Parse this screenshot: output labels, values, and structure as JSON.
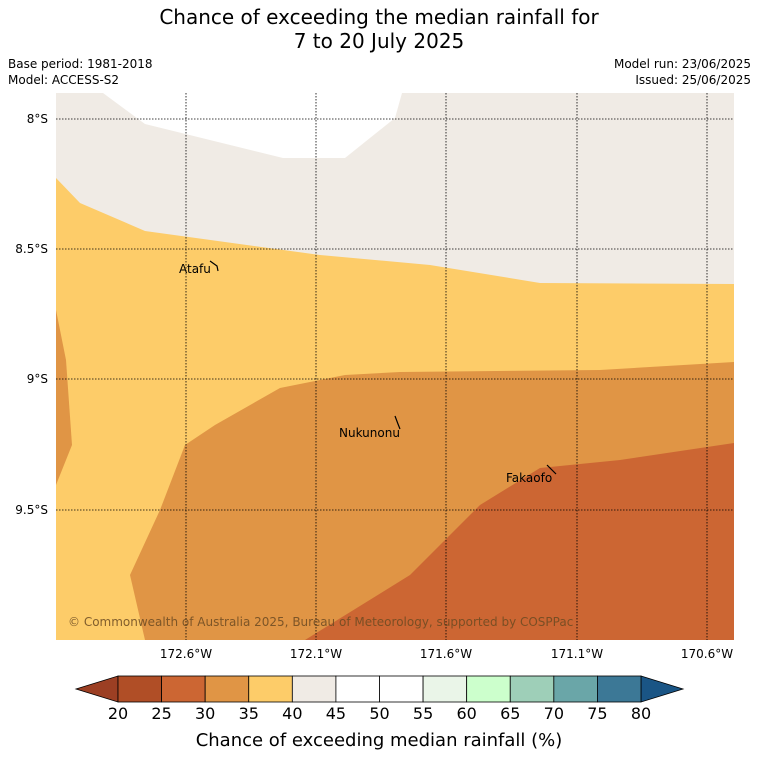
{
  "title": {
    "line1": "Chance of exceeding the median rainfall for",
    "line2": "7 to 20 July 2025"
  },
  "meta": {
    "base_period": "Base period: 1981-2018",
    "model": "Model: ACCESS-S2",
    "model_run": "Model run: 23/06/2025",
    "issued": "Issued: 25/06/2025"
  },
  "axes": {
    "lat_labels": [
      "8°S",
      "8.5°S",
      "9°S",
      "9.5°S"
    ],
    "lon_labels": [
      "172.6°W",
      "172.1°W",
      "171.6°W",
      "171.1°W",
      "170.6°W"
    ]
  },
  "places": [
    {
      "name": "Atafu"
    },
    {
      "name": "Nukunonu"
    },
    {
      "name": "Fakaofo"
    }
  ],
  "copyright": "© Commonwealth of Australia 2025, Bureau of Meteorology, supported by COSPPac",
  "colorbar": {
    "labels": [
      "20",
      "25",
      "30",
      "35",
      "40",
      "45",
      "50",
      "55",
      "60",
      "65",
      "70",
      "75",
      "80"
    ],
    "colors": [
      "#b04e26",
      "#cc6633",
      "#e09545",
      "#fdcc69",
      "#f0ebe5",
      "#ffffff",
      "#ffffff",
      "#eaf5e8",
      "#ccffcc",
      "#9ecfb8",
      "#6aa6a8",
      "#3c7896"
    ],
    "under_color": "#9c3f23",
    "over_color": "#1a5585",
    "title": "Chance of exceeding median rainfall (%)"
  },
  "map_colors": {
    "c30_35": "#e09545",
    "c25_30": "#cc6633",
    "c35_40": "#fdcc69",
    "c40_45": "#f0ebe5",
    "c45_55": "#ffffff"
  }
}
